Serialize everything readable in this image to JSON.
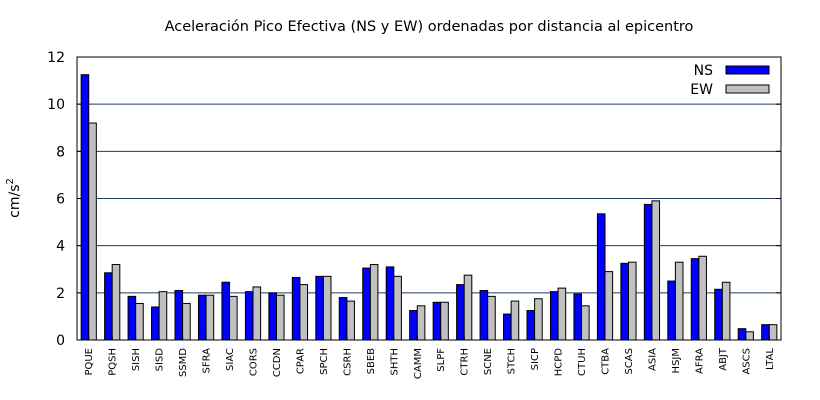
{
  "chart_data": {
    "type": "bar",
    "title": "Aceleración Pico Efectiva (NS y EW) ordenadas por distancia al epicentro",
    "ylabel": "cm/s",
    "ylabel_superscript": "2",
    "xlabel": "",
    "ylim": [
      0,
      12
    ],
    "yticks": [
      0,
      2,
      4,
      6,
      8,
      10,
      12
    ],
    "grid": true,
    "legend_position": "top-right",
    "categories": [
      "PQUE",
      "PQSH",
      "SISH",
      "SISD",
      "SSMD",
      "SFRA",
      "SIAC",
      "CORS",
      "CCDN",
      "CPAR",
      "SPCH",
      "CSRH",
      "SBEB",
      "SHTH",
      "CAMM",
      "SLPF",
      "CTRH",
      "SCNE",
      "STCH",
      "SICP",
      "HCPD",
      "CTUH",
      "CTBA",
      "SCAS",
      "ASIA",
      "HSJM",
      "AFRA",
      "ABJT",
      "ASCS",
      "LTAL"
    ],
    "series": [
      {
        "name": "NS",
        "color": "#0000ff",
        "values": [
          11.25,
          2.85,
          1.85,
          1.4,
          2.1,
          1.9,
          2.45,
          2.05,
          2.0,
          2.65,
          2.7,
          1.8,
          3.05,
          3.1,
          1.25,
          1.6,
          2.35,
          2.1,
          1.1,
          1.25,
          2.05,
          1.95,
          5.35,
          3.25,
          5.75,
          2.5,
          3.45,
          2.15,
          0.48,
          0.65
        ]
      },
      {
        "name": "EW",
        "color": "#c0c0c0",
        "values": [
          9.2,
          3.2,
          1.55,
          2.05,
          1.55,
          1.9,
          1.85,
          2.25,
          1.9,
          2.35,
          2.7,
          1.65,
          3.2,
          2.7,
          1.45,
          1.6,
          2.75,
          1.85,
          1.65,
          1.75,
          2.2,
          1.45,
          2.9,
          3.3,
          5.9,
          3.3,
          3.55,
          2.45,
          0.35,
          0.65
        ]
      }
    ]
  }
}
